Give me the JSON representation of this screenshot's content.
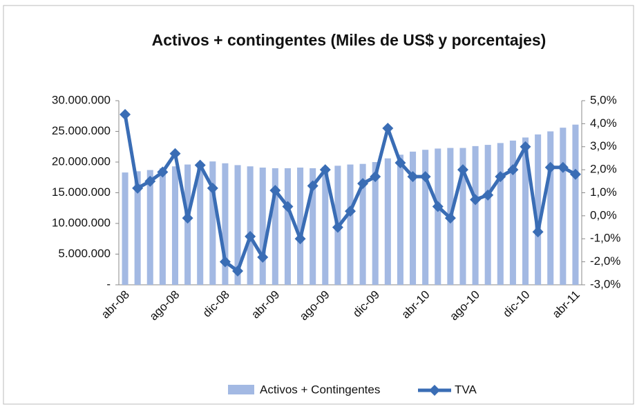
{
  "chart_data": {
    "type": "combo",
    "title": "Activos + contingentes (Miles de US$ y porcentajes)",
    "categories": [
      "abr-08",
      null,
      null,
      null,
      "ago-08",
      null,
      null,
      null,
      "dic-08",
      null,
      null,
      null,
      "abr-09",
      null,
      null,
      null,
      "ago-09",
      null,
      null,
      null,
      "dic-09",
      null,
      null,
      null,
      "abr-10",
      null,
      null,
      null,
      "ago-10",
      null,
      null,
      null,
      "dic-10",
      null,
      null,
      null,
      "abr-11"
    ],
    "series": [
      {
        "name": "Activos + Contingentes",
        "type": "bar",
        "axis": "y",
        "color": "#a3b9e3",
        "values": [
          18300000,
          18500000,
          18700000,
          19000000,
          19300000,
          19600000,
          19900000,
          20100000,
          19800000,
          19500000,
          19300000,
          19100000,
          19000000,
          19000000,
          19100000,
          19000000,
          19200000,
          19400000,
          19600000,
          19700000,
          20000000,
          20600000,
          21200000,
          21700000,
          22000000,
          22200000,
          22300000,
          22300000,
          22600000,
          22800000,
          23100000,
          23500000,
          24000000,
          24500000,
          25000000,
          25600000,
          26100000
        ]
      },
      {
        "name": "TVA",
        "type": "line",
        "axis": "y2",
        "color": "#3a6db5",
        "values": [
          4.4,
          1.2,
          1.5,
          1.9,
          2.7,
          -0.1,
          2.2,
          1.2,
          -2.0,
          -2.4,
          -0.9,
          -1.8,
          1.1,
          0.4,
          -1.0,
          1.3,
          2.0,
          -0.5,
          0.2,
          1.4,
          1.7,
          3.8,
          2.3,
          1.7,
          1.7,
          0.4,
          -0.1,
          2.0,
          0.7,
          0.9,
          1.7,
          2.0,
          3.0,
          -0.7,
          2.1,
          2.1,
          1.8
        ]
      }
    ],
    "ylim": [
      0,
      30000000
    ],
    "yticks": [
      {
        "value": 0,
        "label": "-"
      },
      {
        "value": 5000000,
        "label": "5.000.000"
      },
      {
        "value": 10000000,
        "label": "10.000.000"
      },
      {
        "value": 15000000,
        "label": "15.000.000"
      },
      {
        "value": 20000000,
        "label": "20.000.000"
      },
      {
        "value": 25000000,
        "label": "25.000.000"
      },
      {
        "value": 30000000,
        "label": "30.000.000"
      }
    ],
    "y2lim": [
      -3,
      5
    ],
    "y2ticks": [
      {
        "value": -3,
        "label": "-3,0%"
      },
      {
        "value": -2,
        "label": "-2,0%"
      },
      {
        "value": -1,
        "label": "-1,0%"
      },
      {
        "value": 0,
        "label": "0,0%"
      },
      {
        "value": 1,
        "label": "1,0%"
      },
      {
        "value": 2,
        "label": "2,0%"
      },
      {
        "value": 3,
        "label": "3,0%"
      },
      {
        "value": 4,
        "label": "4,0%"
      },
      {
        "value": 5,
        "label": "5,0%"
      }
    ],
    "grid": false,
    "legend": "bottom"
  }
}
